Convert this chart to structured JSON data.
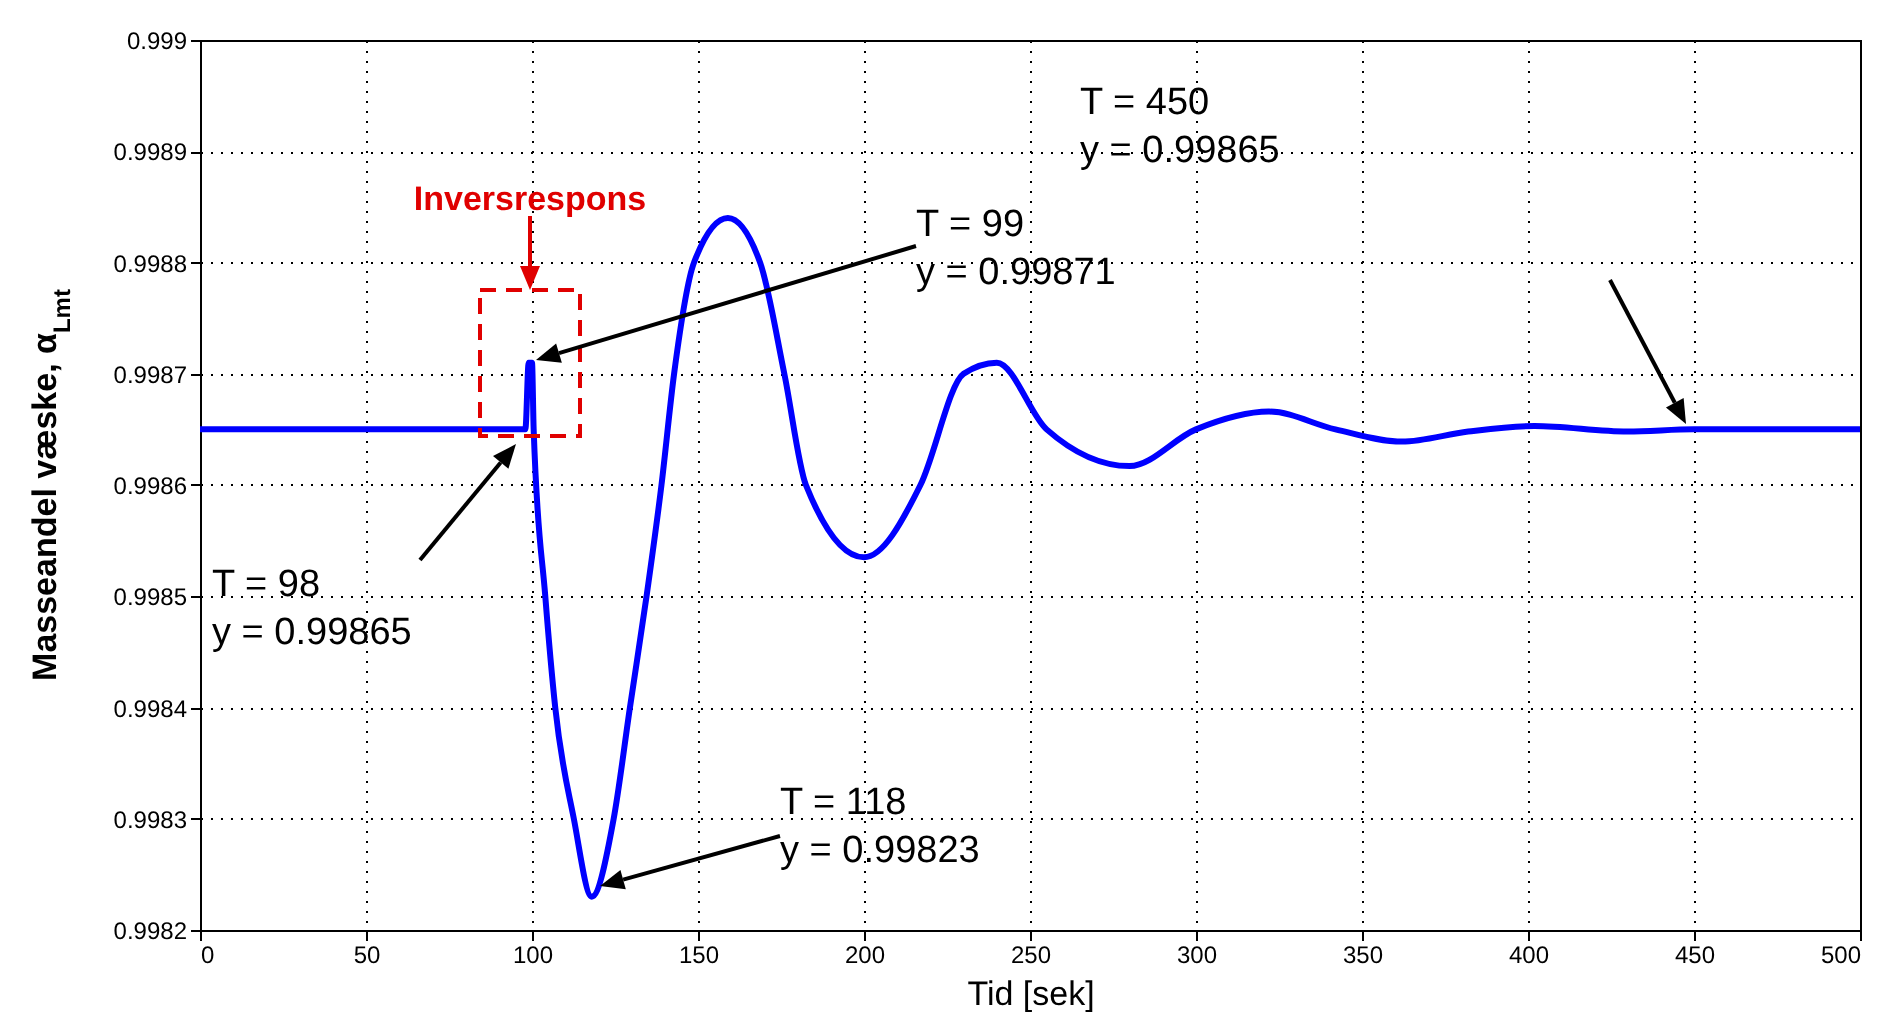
{
  "chart_data": {
    "type": "line",
    "xlabel": "Tid [sek]",
    "ylabel": "Masseandel væske,  α$_{Lmt}$",
    "x": [
      0,
      98,
      99,
      100,
      100.5,
      104,
      107,
      112.6,
      118,
      124.6,
      129.5,
      134.5,
      139,
      142.8,
      148.8,
      159,
      168.7,
      176,
      182.5,
      200,
      217,
      230,
      240,
      255,
      280,
      300,
      322,
      342,
      362,
      382,
      402,
      430,
      450,
      500
    ],
    "series": [
      {
        "color": "#0000ff",
        "values": [
          0.99865,
          0.99865,
          0.99871,
          0.99871,
          0.99865,
          0.9985,
          0.9984,
          0.9983,
          0.99823,
          0.9983,
          0.9984,
          0.9985,
          0.9986,
          0.9987,
          0.9988,
          0.99884,
          0.9988,
          0.9987,
          0.9986,
          0.998535,
          0.9986,
          0.9987,
          0.99871,
          0.99865,
          0.998617,
          0.99865,
          0.998666,
          0.99865,
          0.998639,
          0.998648,
          0.998653,
          0.998648,
          0.99865,
          0.99865
        ]
      }
    ],
    "xlim": [
      0,
      500
    ],
    "xticks": [
      0,
      50,
      100,
      150,
      200,
      250,
      300,
      350,
      400,
      450,
      500
    ],
    "ylim": [
      0.9982,
      0.999
    ],
    "yticks": [
      0.9982,
      0.9983,
      0.9984,
      0.9985,
      0.9986,
      0.9987,
      0.9988,
      0.9989,
      0.999
    ],
    "grid": true,
    "annotations": [
      "Inversrespons",
      "T = 99\ny = 0.99871",
      "T = 98\ny = 0.99865",
      "T = 118\ny = 0.99823",
      "T = 450\ny = 0.99865"
    ]
  }
}
